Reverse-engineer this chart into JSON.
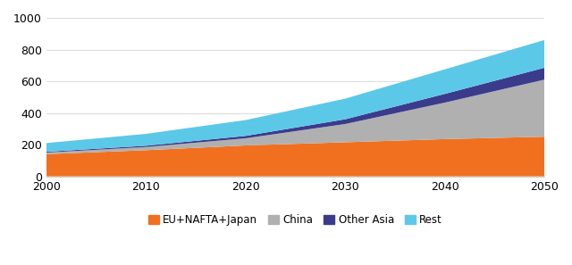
{
  "years": [
    2000,
    2010,
    2020,
    2030,
    2040,
    2050
  ],
  "eu_nafta_japan": [
    140,
    165,
    195,
    215,
    235,
    250
  ],
  "china": [
    10,
    20,
    45,
    115,
    230,
    360
  ],
  "other_asia": [
    5,
    8,
    15,
    30,
    55,
    75
  ],
  "rest": [
    55,
    75,
    100,
    130,
    155,
    175
  ],
  "colors": {
    "eu_nafta_japan": "#f07020",
    "china": "#b0b0b0",
    "other_asia": "#3b3b8c",
    "rest": "#5bc8e8"
  },
  "labels": [
    "EU+NAFTA+Japan",
    "China",
    "Other Asia",
    "Rest"
  ],
  "ylim": [
    0,
    1000
  ],
  "yticks": [
    0,
    200,
    400,
    600,
    800,
    1000
  ],
  "xticks": [
    2000,
    2010,
    2020,
    2030,
    2040,
    2050
  ],
  "grid_color": "#dddddd",
  "bg_color": "#ffffff"
}
